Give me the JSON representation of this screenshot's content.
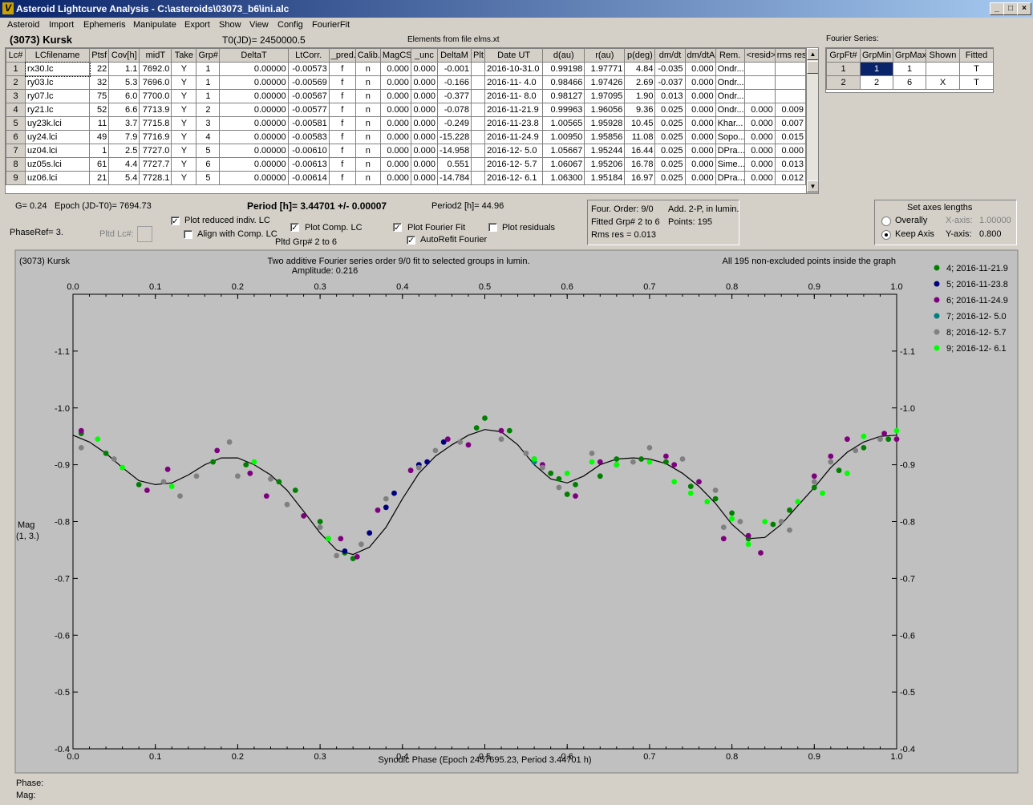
{
  "window": {
    "title": "Asteroid Lightcurve Analysis - C:\\asteroids\\03073_b6\\ini.alc",
    "min": "_",
    "max": "□",
    "close": "×"
  },
  "menu": [
    "Asteroid",
    "Import",
    "Ephemeris",
    "Manipulate",
    "Export",
    "Show",
    "View",
    "Config",
    "FourierFit"
  ],
  "header": {
    "asteroid": "(3073) Kursk",
    "t0": "T0(JD)= 2450000.5",
    "elements": "Elements from file elms.xt",
    "fourier_series": "Fourier Series:"
  },
  "lc_table": {
    "columns": [
      "Lc#",
      "LCfilename",
      "Ptsf",
      "Cov[h]",
      "midT",
      "Take",
      "Grp#",
      "DeltaT",
      "LtCorr.",
      "_pred.",
      "Calib.",
      "MagCS",
      "_unc",
      "DeltaM",
      "Plt",
      "Date UT",
      "d(au)",
      "r(au)",
      "p(deg)",
      "dm/dt",
      "dm/dtA",
      "Rem.",
      "<resid>",
      "rms res"
    ],
    "rows": [
      [
        "1",
        "rx30.lc",
        "22",
        "1.1",
        "7692.0",
        "Y",
        "1",
        "0.00000",
        "-0.00573",
        "f",
        "n",
        "0.000",
        "0.000",
        "-0.001",
        "",
        "2016-10-31.0",
        "0.99198",
        "1.97771",
        "4.84",
        "-0.035",
        "0.000",
        "Ondr...",
        "",
        ""
      ],
      [
        "2",
        "ry03.lc",
        "32",
        "5.3",
        "7696.0",
        "Y",
        "1",
        "0.00000",
        "-0.00569",
        "f",
        "n",
        "0.000",
        "0.000",
        "-0.166",
        "",
        "2016-11- 4.0",
        "0.98466",
        "1.97426",
        "2.69",
        "-0.037",
        "0.000",
        "Ondr...",
        "",
        ""
      ],
      [
        "3",
        "ry07.lc",
        "75",
        "6.0",
        "7700.0",
        "Y",
        "1",
        "0.00000",
        "-0.00567",
        "f",
        "n",
        "0.000",
        "0.000",
        "-0.377",
        "",
        "2016-11- 8.0",
        "0.98127",
        "1.97095",
        "1.90",
        "0.013",
        "0.000",
        "Ondr...",
        "",
        ""
      ],
      [
        "4",
        "ry21.lc",
        "52",
        "6.6",
        "7713.9",
        "Y",
        "2",
        "0.00000",
        "-0.00577",
        "f",
        "n",
        "0.000",
        "0.000",
        "-0.078",
        "",
        "2016-11-21.9",
        "0.99963",
        "1.96056",
        "9.36",
        "0.025",
        "0.000",
        "Ondr...",
        "0.000",
        "0.009"
      ],
      [
        "5",
        "uy23k.lci",
        "11",
        "3.7",
        "7715.8",
        "Y",
        "3",
        "0.00000",
        "-0.00581",
        "f",
        "n",
        "0.000",
        "0.000",
        "-0.249",
        "",
        "2016-11-23.8",
        "1.00565",
        "1.95928",
        "10.45",
        "0.025",
        "0.000",
        "Khar...",
        "0.000",
        "0.007"
      ],
      [
        "6",
        "uy24.lci",
        "49",
        "7.9",
        "7716.9",
        "Y",
        "4",
        "0.00000",
        "-0.00583",
        "f",
        "n",
        "0.000",
        "0.000",
        "-15.228",
        "",
        "2016-11-24.9",
        "1.00950",
        "1.95856",
        "11.08",
        "0.025",
        "0.000",
        "Sopo...",
        "0.000",
        "0.015"
      ],
      [
        "7",
        "uz04.lci",
        "1",
        "2.5",
        "7727.0",
        "Y",
        "5",
        "0.00000",
        "-0.00610",
        "f",
        "n",
        "0.000",
        "0.000",
        "-14.958",
        "",
        "2016-12- 5.0",
        "1.05667",
        "1.95244",
        "16.44",
        "0.025",
        "0.000",
        "DPra...",
        "0.000",
        "0.000"
      ],
      [
        "8",
        "uz05s.lci",
        "61",
        "4.4",
        "7727.7",
        "Y",
        "6",
        "0.00000",
        "-0.00613",
        "f",
        "n",
        "0.000",
        "0.000",
        "0.551",
        "",
        "2016-12- 5.7",
        "1.06067",
        "1.95206",
        "16.78",
        "0.025",
        "0.000",
        "Sime...",
        "0.000",
        "0.013"
      ],
      [
        "9",
        "uz06.lci",
        "21",
        "5.4",
        "7728.1",
        "Y",
        "5",
        "0.00000",
        "-0.00614",
        "f",
        "n",
        "0.000",
        "0.000",
        "-14.784",
        "",
        "2016-12- 6.1",
        "1.06300",
        "1.95184",
        "16.97",
        "0.025",
        "0.000",
        "DPra...",
        "0.000",
        "0.012"
      ]
    ]
  },
  "fourier_table": {
    "columns": [
      "GrpFt#",
      "GrpMin",
      "GrpMax",
      "Shown",
      "Fitted"
    ],
    "rows": [
      [
        "1",
        "1",
        "1",
        "",
        "T"
      ],
      [
        "2",
        "2",
        "6",
        "X",
        "T"
      ]
    ]
  },
  "controls": {
    "g": "G= 0.24",
    "epoch": "Epoch (JD-T0)= 7694.73",
    "period": "Period [h]= 3.44701 +/- 0.00007",
    "period2": "Period2 [h]= 44.96",
    "phase_ref": "PhaseRef= 3.",
    "pltd_lc": "Pltd Lc#:",
    "plot_reduced": "Plot reduced indiv. LC",
    "align": "Align with Comp. LC",
    "plot_comp": "Plot Comp. LC",
    "pltd_grp": "Pltd Grp#  2   to   6",
    "plot_fourier": "Plot Fourier Fit",
    "autorefit": "AutoRefit Fourier",
    "plot_residuals": "Plot residuals",
    "info": [
      "Four. Order:  9/0",
      "Add. 2-P, in lumin.",
      "Fitted Grp# 2 to 6",
      "Points: 195",
      "Rms res     = 0.013"
    ],
    "axes_title": "Set axes lengths",
    "overally": "Overally",
    "keep_axis": "Keep Axis",
    "xaxis_label": "X-axis:",
    "xaxis_val": "1.00000",
    "yaxis_label": "Y-axis:",
    "yaxis_val": "0.800",
    "check": "✓"
  },
  "status": {
    "phase": "Phase:",
    "mag": "Mag:"
  },
  "colors": {
    "g4": "#007f00",
    "g5": "#00007f",
    "g6": "#7f007f",
    "g7": "#007f7f",
    "g8": "#808080",
    "g9": "#00ff00",
    "plot_bg": "#c0c0c0"
  },
  "chart_data": {
    "type": "scatter",
    "title_left": "(3073) Kursk",
    "title": "Two additive Fourier series order 9/0 fit to selected groups in lumin.",
    "amplitude": "Amplitude: 0.216",
    "title_right": "All 195 non-excluded points inside the graph",
    "xlabel": "Synodic Phase (Epoch 2457695.23, Period 3.44701 h)",
    "ylabel": [
      "Mag",
      "(1, 3.)"
    ],
    "xlim": [
      0,
      1
    ],
    "ylim": [
      -1.2,
      -0.4
    ],
    "x_ticks": [
      "0.0",
      "0.1",
      "0.2",
      "0.3",
      "0.4",
      "0.5",
      "0.6",
      "0.7",
      "0.8",
      "0.9",
      "1.0"
    ],
    "y_ticks": [
      "-1.1",
      "-1.0",
      "-0.9",
      "-0.8",
      "-0.7",
      "-0.6",
      "-0.5",
      "-0.4"
    ],
    "y_tick_values": [
      -1.1,
      -1.0,
      -0.9,
      -0.8,
      -0.7,
      -0.6,
      -0.5,
      -0.4
    ],
    "legend": [
      {
        "label": "4; 2016-11-21.9",
        "color": "#007f00"
      },
      {
        "label": "5; 2016-11-23.8",
        "color": "#00007f"
      },
      {
        "label": "6; 2016-11-24.9",
        "color": "#7f007f"
      },
      {
        "label": "7; 2016-12- 5.0",
        "color": "#007f7f"
      },
      {
        "label": "8; 2016-12- 5.7",
        "color": "#808080"
      },
      {
        "label": "9; 2016-12- 6.1",
        "color": "#00ff00"
      }
    ],
    "fit_curve": [
      [
        0.0,
        -0.952
      ],
      [
        0.02,
        -0.94
      ],
      [
        0.04,
        -0.92
      ],
      [
        0.06,
        -0.895
      ],
      [
        0.08,
        -0.872
      ],
      [
        0.1,
        -0.865
      ],
      [
        0.12,
        -0.868
      ],
      [
        0.14,
        -0.882
      ],
      [
        0.16,
        -0.9
      ],
      [
        0.18,
        -0.912
      ],
      [
        0.2,
        -0.912
      ],
      [
        0.22,
        -0.9
      ],
      [
        0.24,
        -0.882
      ],
      [
        0.26,
        -0.855
      ],
      [
        0.28,
        -0.818
      ],
      [
        0.3,
        -0.78
      ],
      [
        0.32,
        -0.75
      ],
      [
        0.34,
        -0.742
      ],
      [
        0.36,
        -0.755
      ],
      [
        0.38,
        -0.79
      ],
      [
        0.4,
        -0.84
      ],
      [
        0.42,
        -0.885
      ],
      [
        0.44,
        -0.915
      ],
      [
        0.46,
        -0.935
      ],
      [
        0.48,
        -0.952
      ],
      [
        0.5,
        -0.962
      ],
      [
        0.52,
        -0.958
      ],
      [
        0.54,
        -0.935
      ],
      [
        0.56,
        -0.9
      ],
      [
        0.58,
        -0.875
      ],
      [
        0.6,
        -0.868
      ],
      [
        0.62,
        -0.88
      ],
      [
        0.64,
        -0.9
      ],
      [
        0.66,
        -0.91
      ],
      [
        0.68,
        -0.912
      ],
      [
        0.7,
        -0.91
      ],
      [
        0.72,
        -0.902
      ],
      [
        0.74,
        -0.885
      ],
      [
        0.76,
        -0.862
      ],
      [
        0.78,
        -0.832
      ],
      [
        0.8,
        -0.795
      ],
      [
        0.82,
        -0.77
      ],
      [
        0.84,
        -0.772
      ],
      [
        0.86,
        -0.795
      ],
      [
        0.88,
        -0.828
      ],
      [
        0.9,
        -0.86
      ],
      [
        0.92,
        -0.895
      ],
      [
        0.94,
        -0.922
      ],
      [
        0.96,
        -0.94
      ],
      [
        0.98,
        -0.95
      ],
      [
        1.0,
        -0.952
      ]
    ],
    "series": [
      {
        "name": "4; 2016-11-21.9",
        "color": "#007f00",
        "points": [
          [
            0.01,
            -0.955
          ],
          [
            0.04,
            -0.92
          ],
          [
            0.08,
            -0.865
          ],
          [
            0.17,
            -0.905
          ],
          [
            0.21,
            -0.9
          ],
          [
            0.25,
            -0.87
          ],
          [
            0.27,
            -0.855
          ],
          [
            0.3,
            -0.8
          ],
          [
            0.31,
            -0.77
          ],
          [
            0.33,
            -0.745
          ],
          [
            0.34,
            -0.735
          ],
          [
            0.49,
            -0.965
          ],
          [
            0.5,
            -0.982
          ],
          [
            0.53,
            -0.96
          ],
          [
            0.56,
            -0.91
          ],
          [
            0.58,
            -0.885
          ],
          [
            0.59,
            -0.875
          ],
          [
            0.6,
            -0.848
          ],
          [
            0.61,
            -0.865
          ],
          [
            0.64,
            -0.88
          ],
          [
            0.66,
            -0.91
          ],
          [
            0.69,
            -0.91
          ],
          [
            0.72,
            -0.905
          ],
          [
            0.75,
            -0.862
          ],
          [
            0.78,
            -0.84
          ],
          [
            0.8,
            -0.815
          ],
          [
            0.82,
            -0.77
          ],
          [
            0.85,
            -0.795
          ],
          [
            0.87,
            -0.82
          ],
          [
            0.9,
            -0.86
          ],
          [
            0.93,
            -0.89
          ],
          [
            0.96,
            -0.93
          ],
          [
            0.99,
            -0.945
          ]
        ]
      },
      {
        "name": "5; 2016-11-23.8",
        "color": "#00007f",
        "points": [
          [
            0.33,
            -0.748
          ],
          [
            0.36,
            -0.78
          ],
          [
            0.38,
            -0.825
          ],
          [
            0.39,
            -0.85
          ],
          [
            0.42,
            -0.9
          ],
          [
            0.43,
            -0.905
          ],
          [
            0.45,
            -0.94
          ]
        ]
      },
      {
        "name": "6; 2016-11-24.9",
        "color": "#7f007f",
        "points": [
          [
            0.01,
            -0.96
          ],
          [
            0.09,
            -0.855
          ],
          [
            0.115,
            -0.892
          ],
          [
            0.175,
            -0.925
          ],
          [
            0.215,
            -0.885
          ],
          [
            0.235,
            -0.845
          ],
          [
            0.28,
            -0.81
          ],
          [
            0.325,
            -0.77
          ],
          [
            0.345,
            -0.738
          ],
          [
            0.37,
            -0.82
          ],
          [
            0.41,
            -0.89
          ],
          [
            0.455,
            -0.945
          ],
          [
            0.48,
            -0.935
          ],
          [
            0.52,
            -0.96
          ],
          [
            0.57,
            -0.9
          ],
          [
            0.61,
            -0.845
          ],
          [
            0.64,
            -0.905
          ],
          [
            0.66,
            -0.9
          ],
          [
            0.72,
            -0.915
          ],
          [
            0.73,
            -0.9
          ],
          [
            0.76,
            -0.87
          ],
          [
            0.79,
            -0.77
          ],
          [
            0.82,
            -0.775
          ],
          [
            0.835,
            -0.745
          ],
          [
            0.9,
            -0.88
          ],
          [
            0.92,
            -0.915
          ],
          [
            0.94,
            -0.945
          ],
          [
            0.985,
            -0.955
          ],
          [
            1.0,
            -0.945
          ]
        ]
      },
      {
        "name": "7; 2016-12- 5.0",
        "color": "#007f7f",
        "points": [
          [
            0.56,
            -0.905
          ]
        ]
      },
      {
        "name": "8; 2016-12- 5.7",
        "color": "#808080",
        "points": [
          [
            0.01,
            -0.93
          ],
          [
            0.05,
            -0.91
          ],
          [
            0.11,
            -0.87
          ],
          [
            0.13,
            -0.845
          ],
          [
            0.15,
            -0.88
          ],
          [
            0.19,
            -0.94
          ],
          [
            0.2,
            -0.88
          ],
          [
            0.24,
            -0.875
          ],
          [
            0.26,
            -0.83
          ],
          [
            0.3,
            -0.79
          ],
          [
            0.32,
            -0.74
          ],
          [
            0.35,
            -0.76
          ],
          [
            0.38,
            -0.84
          ],
          [
            0.42,
            -0.895
          ],
          [
            0.44,
            -0.925
          ],
          [
            0.47,
            -0.94
          ],
          [
            0.52,
            -0.945
          ],
          [
            0.55,
            -0.92
          ],
          [
            0.57,
            -0.895
          ],
          [
            0.59,
            -0.86
          ],
          [
            0.63,
            -0.92
          ],
          [
            0.68,
            -0.905
          ],
          [
            0.7,
            -0.93
          ],
          [
            0.74,
            -0.91
          ],
          [
            0.78,
            -0.855
          ],
          [
            0.79,
            -0.79
          ],
          [
            0.81,
            -0.8
          ],
          [
            0.86,
            -0.8
          ],
          [
            0.87,
            -0.785
          ],
          [
            0.9,
            -0.87
          ],
          [
            0.92,
            -0.905
          ],
          [
            0.95,
            -0.925
          ],
          [
            0.98,
            -0.945
          ]
        ]
      },
      {
        "name": "9; 2016-12- 6.1",
        "color": "#00ff00",
        "points": [
          [
            0.03,
            -0.945
          ],
          [
            0.06,
            -0.895
          ],
          [
            0.12,
            -0.862
          ],
          [
            0.22,
            -0.905
          ],
          [
            0.31,
            -0.77
          ],
          [
            0.56,
            -0.91
          ],
          [
            0.6,
            -0.885
          ],
          [
            0.63,
            -0.905
          ],
          [
            0.66,
            -0.9
          ],
          [
            0.7,
            -0.905
          ],
          [
            0.73,
            -0.87
          ],
          [
            0.75,
            -0.85
          ],
          [
            0.77,
            -0.835
          ],
          [
            0.8,
            -0.805
          ],
          [
            0.82,
            -0.76
          ],
          [
            0.84,
            -0.8
          ],
          [
            0.88,
            -0.835
          ],
          [
            0.91,
            -0.85
          ],
          [
            0.94,
            -0.885
          ],
          [
            0.96,
            -0.95
          ],
          [
            1.0,
            -0.96
          ]
        ]
      }
    ]
  }
}
